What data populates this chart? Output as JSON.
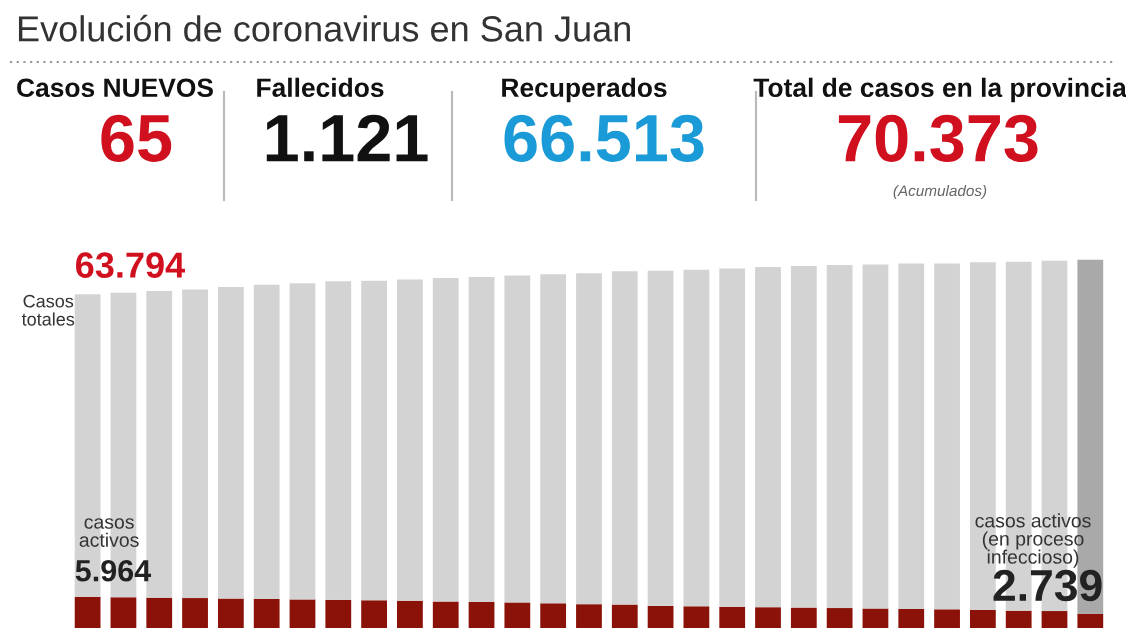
{
  "chart_data": {
    "type": "bar",
    "title": "Evolución de coronavirus en San Juan",
    "categories": [
      null,
      null,
      null,
      null,
      null,
      null,
      null,
      null,
      null,
      null,
      null,
      null,
      null,
      null,
      null,
      null,
      null,
      null,
      null,
      null,
      null,
      null,
      null,
      null,
      null,
      null,
      null,
      null,
      null
    ],
    "stacked": true,
    "totals": [
      "63.794",
      null,
      null,
      null,
      null,
      null,
      null,
      null,
      null,
      null,
      null,
      null,
      null,
      null,
      null,
      null,
      null,
      null,
      null,
      null,
      null,
      null,
      null,
      null,
      null,
      null,
      null,
      null,
      null
    ],
    "series": [
      {
        "color": "#8b1208",
        "values": [
          5964,
          5880,
          5800,
          5720,
          5630,
          5550,
          5470,
          5390,
          5300,
          5220,
          5060,
          4970,
          4890,
          4720,
          4560,
          4480,
          4230,
          4150,
          4060,
          3980,
          3900,
          3810,
          3730,
          3650,
          3570,
          3480,
          3320,
          3240,
          2739
        ],
        "value_labels": [
          "5.964",
          null,
          null,
          null,
          null,
          null,
          null,
          null,
          null,
          null,
          null,
          null,
          null,
          null,
          null,
          null,
          null,
          null,
          null,
          null,
          null,
          null,
          null,
          null,
          null,
          null,
          null,
          null,
          "2.739"
        ]
      },
      {
        "color": "#d3d3d3",
        "colors": [
          "#d3d3d3",
          "#d3d3d3",
          "#d3d3d3",
          "#d3d3d3",
          "#d3d3d3",
          "#d3d3d3",
          "#d3d3d3",
          "#d3d3d3",
          "#d3d3d3",
          "#d3d3d3",
          "#d3d3d3",
          "#d3d3d3",
          "#d3d3d3",
          "#d3d3d3",
          "#d3d3d3",
          "#d3d3d3",
          "#d3d3d3",
          "#d3d3d3",
          "#d3d3d3",
          "#d3d3d3",
          "#d3d3d3",
          "#d3d3d3",
          "#d3d3d3",
          "#d3d3d3",
          "#d3d3d3",
          "#d3d3d3",
          "#d3d3d3",
          "#d3d3d3",
          "#a9a9a9"
        ],
        "values": [
          57830,
          58220,
          58600,
          58980,
          59570,
          60050,
          60430,
          60910,
          61100,
          61380,
          61840,
          62130,
          62510,
          62880,
          63240,
          63720,
          64070,
          64350,
          64640,
          65020,
          65300,
          65590,
          65770,
          66050,
          66130,
          66420,
          66680,
          66960,
          67634
        ]
      }
    ],
    "annotations": [
      "Casos NUEVOS",
      "65",
      "Fallecidos",
      "1.121",
      "Recuperados",
      "66.513",
      "Total de casos en la provincia",
      "70.373",
      "(Acumulados)",
      "Casos\ntotales",
      "casos\nactivos",
      "casos activos\n(en proceso\ninfeccioso)"
    ],
    "grid": false
  }
}
